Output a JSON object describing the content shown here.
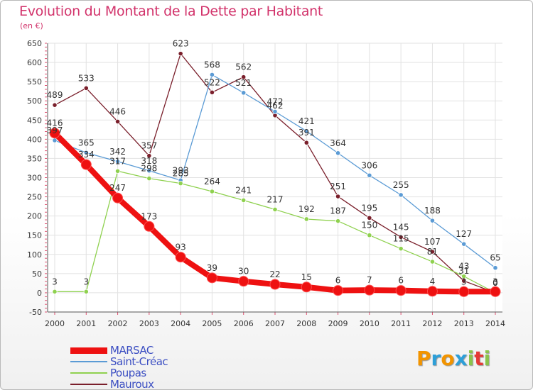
{
  "title": "Evolution du Montant de la Dette par Habitant",
  "subtitle": "(en €)",
  "logo": {
    "letters": [
      "P",
      "r",
      "o",
      "x",
      "i",
      "t",
      "i"
    ],
    "colors": [
      "#f29400",
      "#2d9fd8",
      "#f29400",
      "#2d9fd8",
      "#8bc34a",
      "#e53935",
      "#8bc34a"
    ]
  },
  "chart_data": {
    "type": "line",
    "x": [
      "2000",
      "2001",
      "2002",
      "2003",
      "2004",
      "2005",
      "2006",
      "2007",
      "2008",
      "2009",
      "2010",
      "2011",
      "2012",
      "2013",
      "2014"
    ],
    "ylim": [
      -50,
      650
    ],
    "yticks": [
      -50,
      0,
      50,
      100,
      150,
      200,
      250,
      300,
      350,
      400,
      450,
      500,
      550,
      600,
      650
    ],
    "grid": true,
    "legend": "bottom-left",
    "series": [
      {
        "name": "MARSAC",
        "color": "#ee1111",
        "values": [
          416,
          334,
          247,
          173,
          93,
          39,
          30,
          22,
          15,
          6,
          7,
          6,
          4,
          3,
          3
        ]
      },
      {
        "name": "Saint-Créac",
        "color": "#5b9bd5",
        "values": [
          397,
          365,
          342,
          318,
          293,
          568,
          521,
          472,
          421,
          364,
          306,
          255,
          188,
          127,
          65
        ]
      },
      {
        "name": "Poupas",
        "color": "#8fd14f",
        "values": [
          3,
          3,
          317,
          298,
          285,
          264,
          241,
          217,
          192,
          187,
          150,
          115,
          81,
          43,
          0
        ]
      },
      {
        "name": "Mauroux",
        "color": "#7a1f2b",
        "values": [
          489,
          533,
          446,
          357,
          623,
          522,
          562,
          462,
          391,
          251,
          195,
          145,
          107,
          31,
          0
        ]
      }
    ]
  }
}
